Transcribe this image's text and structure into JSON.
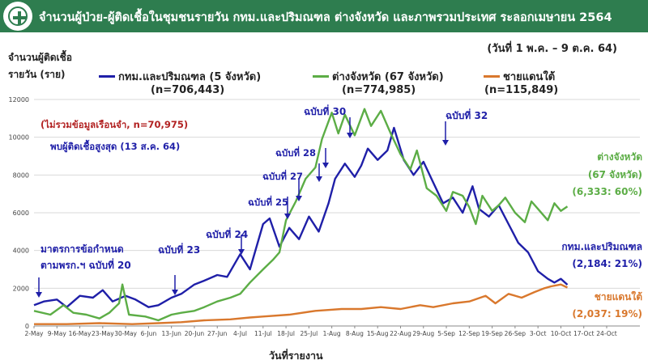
{
  "header": {
    "title": "จำนวนผู้ป่วย-ผู้ติดเชื้อในชุมชนรายวัน กทม.และปริมณฑล ต่างจังหวัด และภาพรวมประเทศ ระลอกเมษายน 2564",
    "bg_color": "#2e7d4f"
  },
  "date_range": "(วันที่ 1 พ.ค. – 9 ต.ค. 64)",
  "y_unit": {
    "line1": "จำนวนผู้ติดเชื้อ",
    "line2": "รายวัน (ราย)"
  },
  "legend": [
    {
      "name": "กทม.และปริมณฑล (5 จังหวัด)",
      "total": "(n=706,443)",
      "color": "#1f1fa8"
    },
    {
      "name": "ต่างจังหวัด (67 จังหวัด)",
      "total": "(n=774,985)",
      "color": "#5cad46"
    },
    {
      "name": "ชายแดนใต้",
      "total": "(n=115,849)",
      "color": "#d9782d"
    }
  ],
  "chart_data": {
    "type": "line",
    "xlabel": "วันที่รายงาน",
    "ylabel": "",
    "ylim": [
      0,
      12000
    ],
    "y_ticks": [
      0,
      2000,
      4000,
      6000,
      8000,
      10000,
      12000
    ],
    "x_tick_labels": [
      "2-May",
      "9-May",
      "16-May",
      "23-May",
      "30-May",
      "6-Jun",
      "13-Jun",
      "20-Jun",
      "27-Jun",
      "4-Jul",
      "11-Jul",
      "18-Jul",
      "25-Jul",
      "1-Aug",
      "8-Aug",
      "15-Aug",
      "22-Aug",
      "29-Aug",
      "5-Sep",
      "12-Sep",
      "19-Sep",
      "26-Sep",
      "3-Oct",
      "10-Oct",
      "17-Oct",
      "24-Oct"
    ],
    "x_start": "2021-05-02",
    "grid": true,
    "series": [
      {
        "name": "กทม.และปริมณฑล (5 จังหวัด)",
        "color": "#1f1fa8",
        "anchors": [
          [
            0,
            1100
          ],
          [
            3,
            1300
          ],
          [
            7,
            1400
          ],
          [
            10,
            1000
          ],
          [
            14,
            1600
          ],
          [
            18,
            1500
          ],
          [
            21,
            1900
          ],
          [
            24,
            1300
          ],
          [
            28,
            1600
          ],
          [
            31,
            1400
          ],
          [
            35,
            1000
          ],
          [
            38,
            1100
          ],
          [
            42,
            1500
          ],
          [
            45,
            1700
          ],
          [
            49,
            2200
          ],
          [
            52,
            2400
          ],
          [
            56,
            2700
          ],
          [
            59,
            2600
          ],
          [
            63,
            3800
          ],
          [
            66,
            3000
          ],
          [
            70,
            5400
          ],
          [
            72,
            5700
          ],
          [
            75,
            4200
          ],
          [
            78,
            5200
          ],
          [
            81,
            4600
          ],
          [
            84,
            5800
          ],
          [
            87,
            5000
          ],
          [
            90,
            6500
          ],
          [
            92,
            7800
          ],
          [
            95,
            8600
          ],
          [
            98,
            7900
          ],
          [
            100,
            8500
          ],
          [
            102,
            9400
          ],
          [
            105,
            8800
          ],
          [
            108,
            9300
          ],
          [
            110,
            10500
          ],
          [
            113,
            8800
          ],
          [
            116,
            8000
          ],
          [
            119,
            8700
          ],
          [
            122,
            7600
          ],
          [
            125,
            6500
          ],
          [
            128,
            6800
          ],
          [
            131,
            6000
          ],
          [
            134,
            7400
          ],
          [
            136,
            6200
          ],
          [
            139,
            5800
          ],
          [
            142,
            6400
          ],
          [
            145,
            5400
          ],
          [
            148,
            4400
          ],
          [
            151,
            3900
          ],
          [
            154,
            2900
          ],
          [
            157,
            2500
          ],
          [
            159,
            2300
          ],
          [
            161,
            2500
          ],
          [
            163,
            2184
          ]
        ]
      },
      {
        "name": "ต่างจังหวัด (67 จังหวัด)",
        "color": "#5cad46",
        "anchors": [
          [
            0,
            800
          ],
          [
            5,
            600
          ],
          [
            9,
            1100
          ],
          [
            12,
            700
          ],
          [
            16,
            600
          ],
          [
            20,
            400
          ],
          [
            23,
            700
          ],
          [
            26,
            1200
          ],
          [
            27,
            2200
          ],
          [
            29,
            600
          ],
          [
            34,
            500
          ],
          [
            38,
            300
          ],
          [
            42,
            600
          ],
          [
            45,
            700
          ],
          [
            49,
            800
          ],
          [
            52,
            1000
          ],
          [
            56,
            1300
          ],
          [
            60,
            1500
          ],
          [
            63,
            1700
          ],
          [
            66,
            2300
          ],
          [
            70,
            3000
          ],
          [
            73,
            3500
          ],
          [
            75,
            3900
          ],
          [
            77,
            5600
          ],
          [
            80,
            6600
          ],
          [
            83,
            7800
          ],
          [
            86,
            8400
          ],
          [
            88,
            9900
          ],
          [
            91,
            11300
          ],
          [
            93,
            10200
          ],
          [
            95,
            11200
          ],
          [
            98,
            10100
          ],
          [
            101,
            11500
          ],
          [
            103,
            10600
          ],
          [
            106,
            11400
          ],
          [
            109,
            10200
          ],
          [
            112,
            9100
          ],
          [
            115,
            8300
          ],
          [
            117,
            9300
          ],
          [
            120,
            7300
          ],
          [
            123,
            6900
          ],
          [
            126,
            6100
          ],
          [
            128,
            7100
          ],
          [
            131,
            6900
          ],
          [
            133,
            6300
          ],
          [
            135,
            5400
          ],
          [
            137,
            6900
          ],
          [
            140,
            6100
          ],
          [
            142,
            6400
          ],
          [
            144,
            6800
          ],
          [
            147,
            6000
          ],
          [
            150,
            5500
          ],
          [
            152,
            6600
          ],
          [
            154,
            6200
          ],
          [
            157,
            5600
          ],
          [
            159,
            6500
          ],
          [
            161,
            6100
          ],
          [
            163,
            6333
          ]
        ]
      },
      {
        "name": "ชายแดนใต้",
        "color": "#d9782d",
        "anchors": [
          [
            0,
            100
          ],
          [
            10,
            100
          ],
          [
            20,
            150
          ],
          [
            30,
            100
          ],
          [
            38,
            150
          ],
          [
            45,
            200
          ],
          [
            52,
            300
          ],
          [
            60,
            350
          ],
          [
            66,
            450
          ],
          [
            70,
            500
          ],
          [
            78,
            600
          ],
          [
            86,
            800
          ],
          [
            94,
            900
          ],
          [
            100,
            900
          ],
          [
            106,
            1000
          ],
          [
            112,
            900
          ],
          [
            118,
            1100
          ],
          [
            122,
            1000
          ],
          [
            128,
            1200
          ],
          [
            133,
            1300
          ],
          [
            138,
            1600
          ],
          [
            141,
            1200
          ],
          [
            145,
            1700
          ],
          [
            149,
            1500
          ],
          [
            153,
            1800
          ],
          [
            156,
            2000
          ],
          [
            158,
            2100
          ],
          [
            161,
            2200
          ],
          [
            163,
            2037
          ]
        ]
      }
    ],
    "annotations": [
      {
        "text": "(ไม่รวมข้อมูลเรือนจำ, n=70,975)",
        "color": "#b22222"
      },
      {
        "text": "พบผู้ติดเชื้อสูงสุด (13 ส.ค. 64)",
        "color": "#1f1fa8"
      },
      {
        "text": "มาตรการข้อกำหนด",
        "color": "#1f1fa8"
      },
      {
        "text": "ตามพรก.ฯ ฉบับที่ 20",
        "color": "#1f1fa8"
      },
      {
        "text": "ฉบับที่ 23",
        "color": "#1f1fa8"
      },
      {
        "text": "ฉบับที่ 24",
        "color": "#1f1fa8"
      },
      {
        "text": "ฉบับที่ 25",
        "color": "#1f1fa8"
      },
      {
        "text": "ฉบับที่ 27",
        "color": "#1f1fa8"
      },
      {
        "text": "ฉบับที่ 28",
        "color": "#1f1fa8"
      },
      {
        "text": "ฉบับที่ 30",
        "color": "#1f1fa8"
      },
      {
        "text": "ฉบับที่ 32",
        "color": "#1f1fa8"
      },
      {
        "text": "ต่างจังหวัด",
        "color": "#5cad46"
      },
      {
        "text": "(67 จังหวัด)",
        "color": "#5cad46"
      },
      {
        "text": "(6,333: 60%)",
        "color": "#5cad46"
      },
      {
        "text": "กทม.และปริมณฑล",
        "color": "#1f1fa8"
      },
      {
        "text": "(2,184: 21%)",
        "color": "#1f1fa8"
      },
      {
        "text": "ชายแดนใต้",
        "color": "#d9782d"
      },
      {
        "text": "(2,037: 19%)",
        "color": "#d9782d"
      }
    ]
  }
}
